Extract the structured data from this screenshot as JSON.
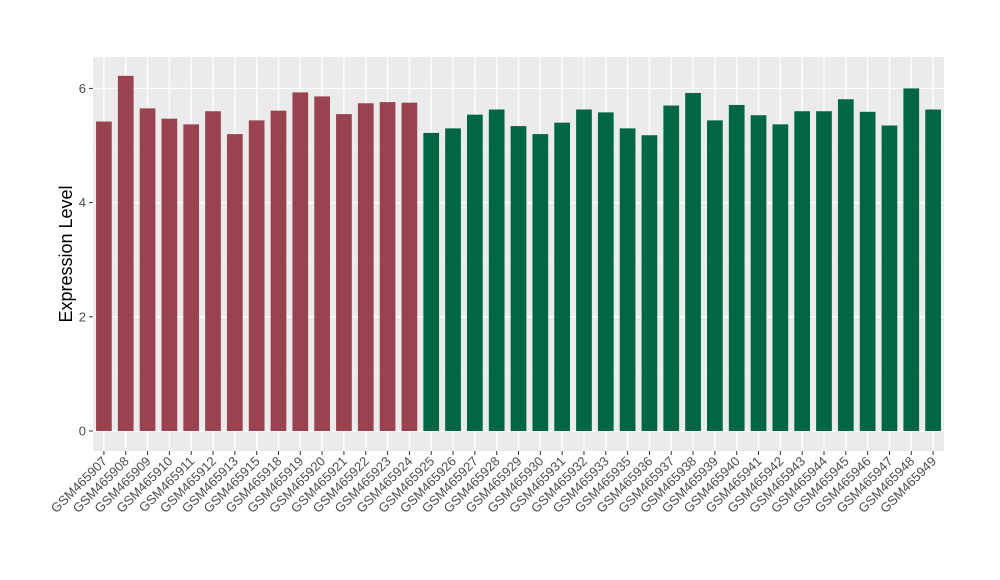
{
  "chart_data": {
    "type": "bar",
    "title": "",
    "xlabel": "",
    "ylabel": "Expression Level",
    "ylim": [
      -0.35,
      6.55
    ],
    "yticks": [
      0,
      2,
      4,
      6
    ],
    "grid": true,
    "legend": "none",
    "panel_background": "#ebebeb",
    "categories": [
      "GSM465907",
      "GSM465908",
      "GSM465909",
      "GSM465910",
      "GSM465911",
      "GSM465912",
      "GSM465913",
      "GSM465915",
      "GSM465918",
      "GSM465919",
      "GSM465920",
      "GSM465921",
      "GSM465922",
      "GSM465923",
      "GSM465924",
      "GSM465925",
      "GSM465926",
      "GSM465927",
      "GSM465928",
      "GSM465929",
      "GSM465930",
      "GSM465931",
      "GSM465932",
      "GSM465933",
      "GSM465935",
      "GSM465936",
      "GSM465937",
      "GSM465938",
      "GSM465939",
      "GSM465940",
      "GSM465941",
      "GSM465942",
      "GSM465943",
      "GSM465944",
      "GSM465945",
      "GSM465946",
      "GSM465947",
      "GSM465948",
      "GSM465949"
    ],
    "values": [
      5.42,
      6.22,
      5.65,
      5.47,
      5.37,
      5.6,
      5.2,
      5.44,
      5.61,
      5.93,
      5.86,
      5.55,
      5.74,
      5.76,
      5.75,
      5.22,
      5.3,
      5.54,
      5.63,
      5.34,
      5.2,
      5.4,
      5.63,
      5.58,
      5.3,
      5.18,
      5.7,
      5.92,
      5.44,
      5.71,
      5.53,
      5.37,
      5.6,
      5.6,
      5.81,
      5.59,
      5.35,
      6.0,
      5.63
    ],
    "bar_colors": [
      "#9a4350",
      "#9a4350",
      "#9a4350",
      "#9a4350",
      "#9a4350",
      "#9a4350",
      "#9a4350",
      "#9a4350",
      "#9a4350",
      "#9a4350",
      "#9a4350",
      "#9a4350",
      "#9a4350",
      "#9a4350",
      "#9a4350",
      "#006644",
      "#006644",
      "#006644",
      "#006644",
      "#006644",
      "#006644",
      "#006644",
      "#006644",
      "#006644",
      "#006644",
      "#006644",
      "#006644",
      "#006644",
      "#006644",
      "#006644",
      "#006644",
      "#006644",
      "#006644",
      "#006644",
      "#006644",
      "#006644",
      "#006644",
      "#006644",
      "#006644"
    ]
  }
}
